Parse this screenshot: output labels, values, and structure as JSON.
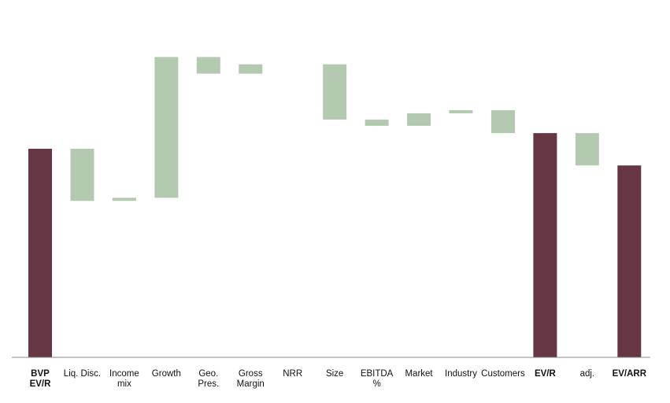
{
  "chart_data": {
    "type": "waterfall",
    "categories": [
      "BVP\nEV/R",
      "Liq. Disc.",
      "Income\nmix",
      "Growth",
      "Geo.\nPres.",
      "Gross\nMargin",
      "NRR",
      "Size",
      "EBITDA\n%",
      "Market",
      "Industry",
      "Customers",
      "EV/R",
      "adj.",
      "EV/ARR"
    ],
    "kinds": [
      "total",
      "delta",
      "delta",
      "delta",
      "delta",
      "delta",
      "delta",
      "delta",
      "delta",
      "delta",
      "delta",
      "delta",
      "total",
      "delta",
      "total"
    ],
    "values": [
      10.0,
      -2.5,
      0.15,
      6.75,
      -0.8,
      0.45,
      0,
      -2.65,
      -0.3,
      0.6,
      0.15,
      -1.1,
      10.75,
      -1.55,
      9.2
    ],
    "ylim": [
      0,
      17.1
    ],
    "grid": false,
    "colors": {
      "total": "#663742",
      "delta": "#b3cab0",
      "axis": "#888888"
    }
  }
}
